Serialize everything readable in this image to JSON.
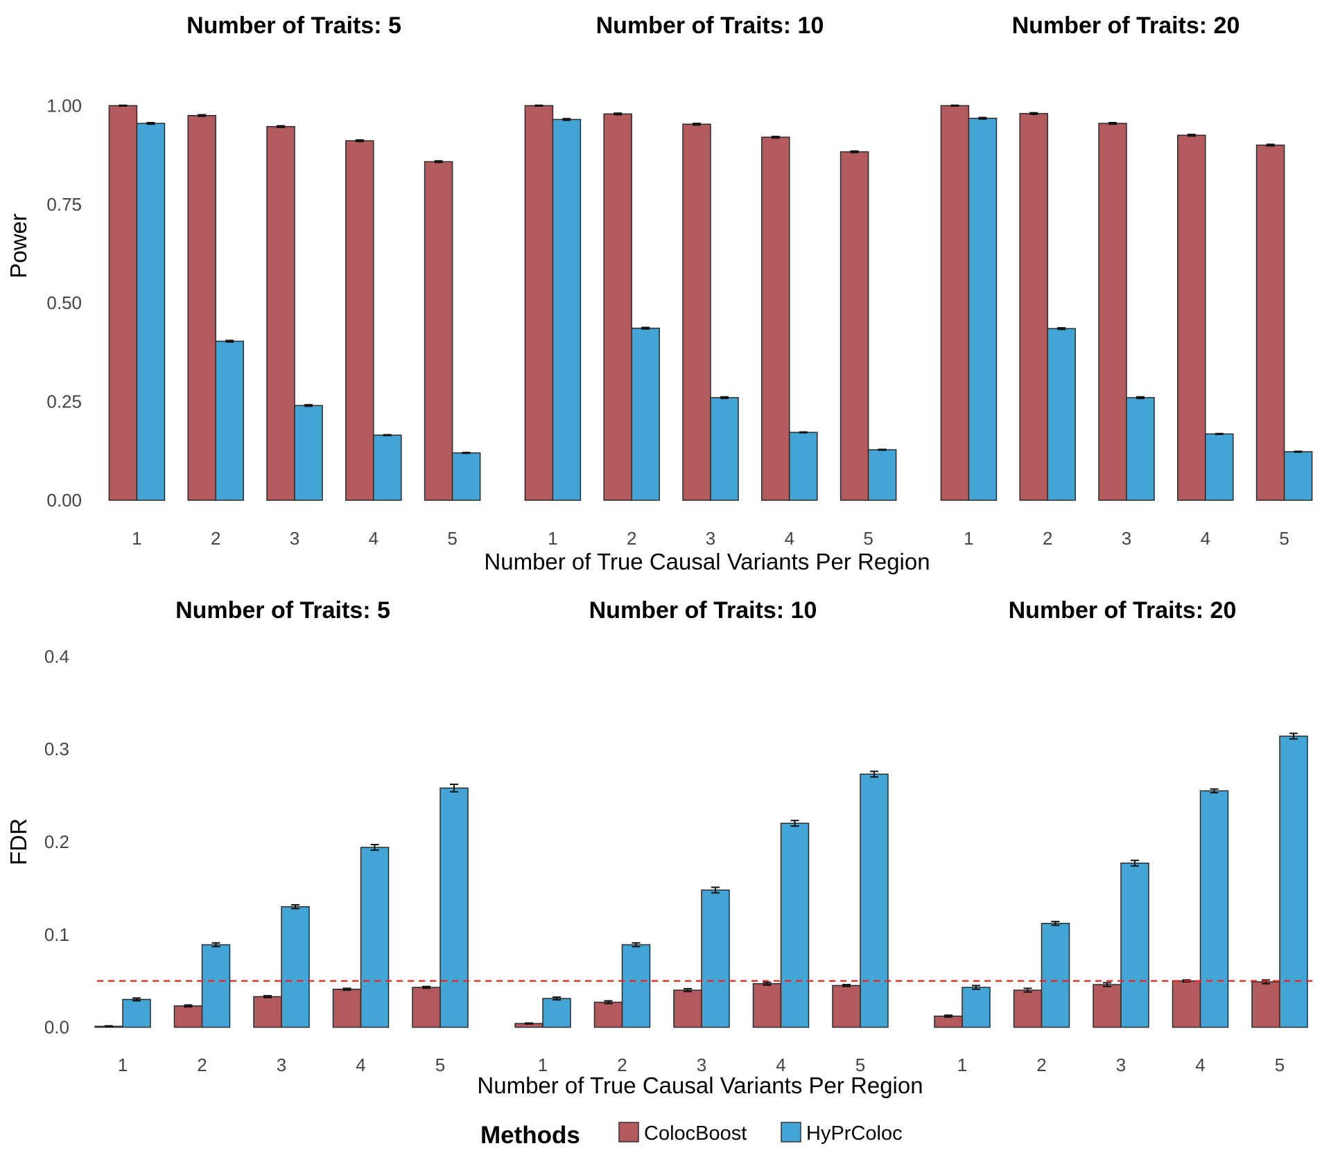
{
  "legend": {
    "title": "Methods",
    "items": [
      {
        "label": "ColocBoost",
        "color": "#b35a5d"
      },
      {
        "label": "HyPrColoc",
        "color": "#42a5d6"
      }
    ]
  },
  "reference_line": {
    "value": 0.05,
    "color": "#e32626",
    "style": "dashed",
    "panel": "FDR"
  },
  "chart_data": [
    {
      "type": "bar",
      "ylabel": "Power",
      "xlabel": "Number of True Causal Variants Per Region",
      "ylim": [
        0,
        1.05
      ],
      "yticks": [
        "0.00",
        "0.25",
        "0.50",
        "0.75",
        "1.00"
      ],
      "ytick_values": [
        0,
        0.25,
        0.5,
        0.75,
        1.0
      ],
      "categories": [
        "1",
        "2",
        "3",
        "4",
        "5"
      ],
      "error_bars": true,
      "facets": [
        {
          "title": "Number of Traits: 5",
          "series": [
            {
              "name": "ColocBoost",
              "values": [
                1.0,
                0.975,
                0.947,
                0.911,
                0.858
              ],
              "errors": [
                0.001,
                0.002,
                0.002,
                0.002,
                0.002
              ]
            },
            {
              "name": "HyPrColoc",
              "values": [
                0.955,
                0.403,
                0.24,
                0.165,
                0.12
              ],
              "errors": [
                0.002,
                0.002,
                0.002,
                0.001,
                0.001
              ]
            }
          ]
        },
        {
          "title": "Number of Traits: 10",
          "series": [
            {
              "name": "ColocBoost",
              "values": [
                1.0,
                0.979,
                0.953,
                0.92,
                0.883
              ],
              "errors": [
                0.001,
                0.002,
                0.002,
                0.002,
                0.002
              ]
            },
            {
              "name": "HyPrColoc",
              "values": [
                0.965,
                0.436,
                0.26,
                0.172,
                0.128
              ],
              "errors": [
                0.002,
                0.002,
                0.002,
                0.001,
                0.001
              ]
            }
          ]
        },
        {
          "title": "Number of Traits: 20",
          "series": [
            {
              "name": "ColocBoost",
              "values": [
                1.0,
                0.98,
                0.955,
                0.925,
                0.9
              ],
              "errors": [
                0.001,
                0.002,
                0.002,
                0.002,
                0.002
              ]
            },
            {
              "name": "HyPrColoc",
              "values": [
                0.968,
                0.435,
                0.26,
                0.168,
                0.123
              ],
              "errors": [
                0.002,
                0.002,
                0.002,
                0.001,
                0.001
              ]
            }
          ]
        }
      ]
    },
    {
      "type": "bar",
      "ylabel": "FDR",
      "xlabel": "Number of True Causal Variants Per Region",
      "ylim": [
        -0.01,
        0.41
      ],
      "yticks": [
        "0.0",
        "0.1",
        "0.2",
        "0.3",
        "0.4"
      ],
      "ytick_values": [
        0,
        0.1,
        0.2,
        0.3,
        0.4
      ],
      "categories": [
        "1",
        "2",
        "3",
        "4",
        "5"
      ],
      "error_bars": true,
      "facets": [
        {
          "title": "Number of Traits: 5",
          "series": [
            {
              "name": "ColocBoost",
              "values": [
                0.001,
                0.023,
                0.033,
                0.041,
                0.043
              ],
              "errors": [
                0.0005,
                0.001,
                0.001,
                0.001,
                0.001
              ]
            },
            {
              "name": "HyPrColoc",
              "values": [
                0.03,
                0.089,
                0.13,
                0.194,
                0.258
              ],
              "errors": [
                0.0015,
                0.002,
                0.002,
                0.003,
                0.004
              ]
            }
          ]
        },
        {
          "title": "Number of Traits: 10",
          "series": [
            {
              "name": "ColocBoost",
              "values": [
                0.004,
                0.027,
                0.04,
                0.047,
                0.045
              ],
              "errors": [
                0.0005,
                0.0015,
                0.0015,
                0.0015,
                0.001
              ]
            },
            {
              "name": "HyPrColoc",
              "values": [
                0.031,
                0.089,
                0.148,
                0.22,
                0.273
              ],
              "errors": [
                0.0015,
                0.002,
                0.003,
                0.003,
                0.003
              ]
            }
          ]
        },
        {
          "title": "Number of Traits: 20",
          "series": [
            {
              "name": "ColocBoost",
              "values": [
                0.012,
                0.04,
                0.046,
                0.05,
                0.049
              ],
              "errors": [
                0.001,
                0.002,
                0.002,
                0.001,
                0.002
              ]
            },
            {
              "name": "HyPrColoc",
              "values": [
                0.043,
                0.112,
                0.177,
                0.255,
                0.314
              ],
              "errors": [
                0.002,
                0.002,
                0.003,
                0.002,
                0.003
              ]
            }
          ]
        }
      ]
    }
  ]
}
